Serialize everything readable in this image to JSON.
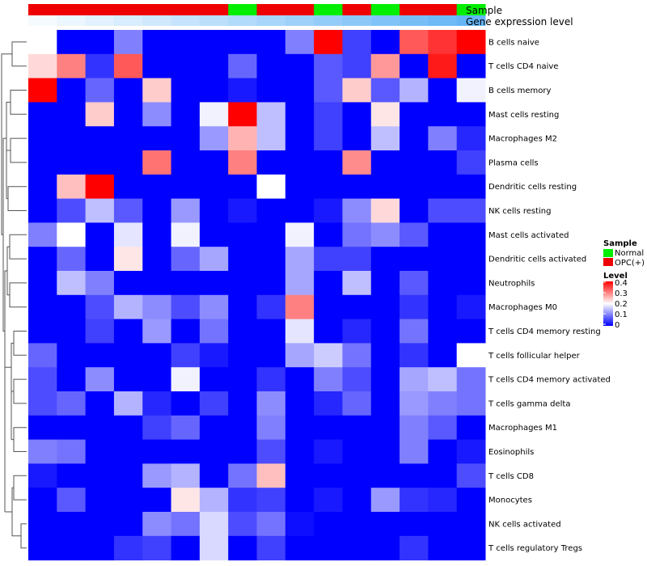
{
  "chart_data": {
    "type": "heatmap",
    "title": "",
    "rows": [
      "B cells naive",
      "T cells CD4 naive",
      "B cells memory",
      "Mast cells resting",
      "Macrophages M2",
      "Plasma cells",
      "Dendritic cells resting",
      "NK cells resting",
      "Mast cells activated",
      "Dendritic cells activated",
      "Neutrophils",
      "Macrophages M0",
      "T cells CD4 memory resting",
      "T cells follicular helper",
      "T cells CD4 memory activated",
      "T cells gamma delta",
      "Macrophages M1",
      "Eosinophils",
      "T cells CD8",
      "Monocytes",
      "NK cells activated",
      "T cells regulatory  Tregs"
    ],
    "values": [
      [
        0.2,
        0,
        0,
        0.1,
        0,
        0,
        0,
        0,
        0,
        0.1,
        0.4,
        0.05,
        0,
        0.33,
        0.36,
        0.4
      ],
      [
        0.23,
        0.3,
        0.04,
        0.33,
        0,
        0,
        0,
        0.08,
        0,
        0,
        0.07,
        0.05,
        0.28,
        0,
        0.38,
        0
      ],
      [
        0.4,
        0,
        0.08,
        0,
        0.24,
        0,
        0,
        0.02,
        0,
        0,
        0.07,
        0.24,
        0.07,
        0.14,
        0,
        0.19
      ],
      [
        0,
        0,
        0.24,
        0,
        0.11,
        0,
        0.19,
        0.4,
        0.15,
        0,
        0.05,
        0,
        0.22,
        0,
        0,
        0
      ],
      [
        0,
        0,
        0,
        0,
        0,
        0,
        0.12,
        0.26,
        0.15,
        0,
        0.05,
        0,
        0.15,
        0,
        0.1,
        0.03
      ],
      [
        0,
        0,
        0,
        0,
        0.31,
        0,
        0,
        0.3,
        0,
        0,
        0,
        0.29,
        0,
        0,
        0,
        0.05
      ],
      [
        0,
        0.25,
        0.4,
        0,
        0,
        0,
        0,
        0,
        0.2,
        0,
        0,
        0,
        0,
        0,
        0,
        0
      ],
      [
        0,
        0.06,
        0.15,
        0.07,
        0,
        0.12,
        0,
        0.02,
        0,
        0,
        0.02,
        0.11,
        0.23,
        0,
        0.06,
        0.06
      ],
      [
        0.1,
        0.2,
        0,
        0.18,
        0,
        0.19,
        0,
        0,
        0,
        0.19,
        0,
        0.09,
        0.11,
        0.07,
        0,
        0
      ],
      [
        0,
        0.08,
        0,
        0.22,
        0,
        0.08,
        0.13,
        0,
        0,
        0.13,
        0.05,
        0.05,
        0,
        0,
        0,
        0
      ],
      [
        0,
        0.15,
        0.1,
        0,
        0,
        0,
        0,
        0,
        0,
        0.13,
        0,
        0.15,
        0,
        0.07,
        0,
        0
      ],
      [
        0,
        0,
        0.06,
        0.14,
        0.11,
        0.06,
        0.11,
        0,
        0.04,
        0.3,
        0,
        0,
        0,
        0.04,
        0,
        0.02
      ],
      [
        0,
        0,
        0.05,
        0,
        0.12,
        0,
        0.09,
        0,
        0,
        0.18,
        0,
        0.03,
        0,
        0.09,
        0,
        0
      ],
      [
        0.08,
        0,
        0,
        0,
        0,
        0.05,
        0.02,
        0,
        0,
        0.13,
        0.16,
        0.09,
        0,
        0.04,
        0,
        0.2
      ],
      [
        0.06,
        0,
        0.11,
        0,
        0,
        0.19,
        0,
        0,
        0.04,
        0,
        0.1,
        0.06,
        0,
        0.13,
        0.15,
        0.09
      ],
      [
        0.06,
        0.08,
        0,
        0.14,
        0.03,
        0,
        0.05,
        0,
        0.11,
        0,
        0.03,
        0.08,
        0,
        0.12,
        0.1,
        0.09
      ],
      [
        0,
        0,
        0,
        0,
        0.05,
        0.08,
        0,
        0,
        0.1,
        0,
        0,
        0,
        0,
        0.1,
        0.07,
        0
      ],
      [
        0.1,
        0.09,
        0,
        0,
        0,
        0,
        0,
        0,
        0.06,
        0,
        0.02,
        0,
        0,
        0.1,
        0,
        0.02
      ],
      [
        0.02,
        0,
        0,
        0,
        0.12,
        0.14,
        0,
        0.09,
        0.25,
        0,
        0,
        0,
        0,
        0,
        0,
        0.06
      ],
      [
        0,
        0.07,
        0,
        0,
        0,
        0.22,
        0.14,
        0.04,
        0.05,
        0,
        0.02,
        0,
        0.12,
        0.04,
        0.03,
        0
      ],
      [
        0,
        0,
        0,
        0,
        0.11,
        0.09,
        0.17,
        0.06,
        0.09,
        0.01,
        0,
        0,
        0,
        0,
        0,
        0
      ],
      [
        0,
        0,
        0,
        0.04,
        0.05,
        0,
        0.17,
        0,
        0.05,
        0,
        0,
        0,
        0,
        0.04,
        0,
        0
      ]
    ],
    "samples": [
      "OPC(+)",
      "OPC(+)",
      "OPC(+)",
      "OPC(+)",
      "OPC(+)",
      "OPC(+)",
      "OPC(+)",
      "Normal",
      "OPC(+)",
      "OPC(+)",
      "Normal",
      "OPC(+)",
      "Normal",
      "OPC(+)",
      "OPC(+)",
      "Normal"
    ],
    "expression_level": [
      0.02,
      0.04,
      0.06,
      0.08,
      0.1,
      0.12,
      0.14,
      0.16,
      0.18,
      0.2,
      0.22,
      0.24,
      0.26,
      0.28,
      0.3,
      0.32
    ],
    "annotation_labels": [
      "Sample",
      "Gene expression level"
    ],
    "legend_sample": {
      "title": "Sample",
      "items": [
        {
          "label": "Normal",
          "color": "#00ee00"
        },
        {
          "label": "OPC(+)",
          "color": "#ee0000"
        }
      ]
    },
    "legend_level": {
      "title": "Level",
      "ticks": [
        "0.4",
        "0.3",
        "0.2",
        "0.1",
        "0"
      ],
      "range": [
        0,
        0.4
      ]
    },
    "colors": {
      "low": "#0000ff",
      "mid": "#ffffff",
      "high": "#ff0000",
      "ann_low": "#ffffff",
      "ann_high": "#64b5f6"
    }
  }
}
